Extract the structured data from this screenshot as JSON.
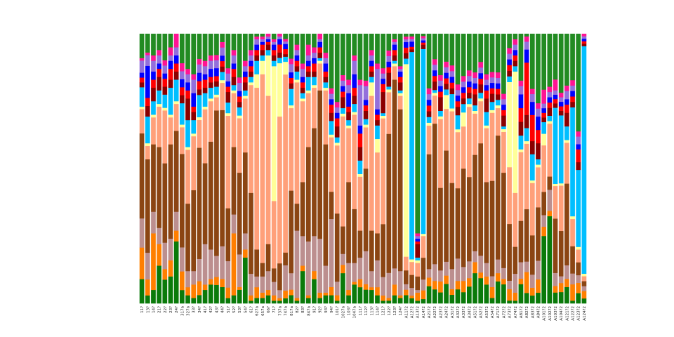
{
  "chart_data": {
    "type": "bar",
    "stacked": true,
    "normalized": true,
    "title": "",
    "xlabel": "",
    "ylabel": "",
    "ylim": [
      0,
      1
    ],
    "grid": false,
    "legend": "none",
    "categories": [
      "11?",
      "13?",
      "14?",
      "21?",
      "22?",
      "23?",
      "24?",
      "317a",
      "327a",
      "33?",
      "34?",
      "41?",
      "42?",
      "43?",
      "44?",
      "51?",
      "52?",
      "53?",
      "54?",
      "61?",
      "627a",
      "657a",
      "66?",
      "71?",
      "737a",
      "747a",
      "817a",
      "82?",
      "83?",
      "847a",
      "91?",
      "92?",
      "93?",
      "94?",
      "101?",
      "1027a",
      "103?",
      "1047a",
      "111?",
      "112?",
      "113?",
      "114?",
      "121?",
      "122?",
      "123?",
      "124?",
      "A11?2",
      "A12?2",
      "A13?2",
      "A14?2",
      "A21?2",
      "A22?2",
      "A23?2",
      "A24?2",
      "A31?2",
      "A32?2",
      "A33?2",
      "A34?2",
      "A51?2",
      "A52?2",
      "A53?2",
      "A54?2",
      "A71?2",
      "A72?2",
      "A73?2",
      "A74?2",
      "A81?2",
      "A82?2",
      "A83?2",
      "A84?2",
      "A101?2",
      "A102?2",
      "A103?2",
      "A104?2",
      "A121?2",
      "A122?2",
      "A123?2",
      "A124?2"
    ],
    "palette": [
      "#0a7a0a",
      "#ff7f00",
      "#bc8f8f",
      "#8b4513",
      "#ffa07a",
      "#ffff99",
      "#00bfff",
      "#8b0000",
      "#ff0000",
      "#0000ff",
      "#9370db",
      "#ff1493",
      "#228b22",
      "#daa520",
      "#4682b4",
      "#a0522d",
      "#f0e68c",
      "#87ceeb",
      "#ffd700",
      "#00ff7f"
    ],
    "series": [
      {
        "values": [
          0.1,
          0.03,
          0.05,
          0.14,
          0.09,
          0.1,
          0.23,
          0.05,
          0.03,
          0.02,
          0.03,
          0.05,
          0.07,
          0.07,
          0.06,
          0.02,
          0.03,
          0.05,
          0.17,
          0.01,
          0.02,
          0.02,
          0.03,
          0.01,
          0.01,
          0.02,
          0.03,
          0.01,
          0.12,
          0.02,
          0.09,
          0.02,
          0.03,
          0.03,
          0.01,
          0.11,
          0.03,
          0.07,
          0.06,
          0.05,
          0.05,
          0.03,
          0.01,
          0.01,
          0.03,
          0.02,
          0.03,
          0.02,
          0.01,
          0.02,
          0.06,
          0.05,
          0.04,
          0.07,
          0.03,
          0.05,
          0.04,
          0.06,
          0.11,
          0.09,
          0.07,
          0.02,
          0.08,
          0.07,
          0.01,
          0.01,
          0.07,
          0.04,
          0.03,
          0.04,
          0.29,
          0.33,
          0.05,
          0.05,
          0.06,
          0.01,
          0.04,
          0.02
        ]
      },
      {
        "values": [
          0.13,
          0.06,
          0.21,
          0.08,
          0.04,
          0.06,
          0.04,
          0.07,
          0.03,
          0.05,
          0.05,
          0.02,
          0.02,
          0.03,
          0.03,
          0.04,
          0.23,
          0.01,
          0.03,
          0.02,
          0.04,
          0.02,
          0.02,
          0.02,
          0.01,
          0.03,
          0.02,
          0.01,
          0.02,
          0.01,
          0.03,
          0.02,
          0.01,
          0.03,
          0.02,
          0.03,
          0.02,
          0.01,
          0.03,
          0.02,
          0.01,
          0.03,
          0.02,
          0.01,
          0.04,
          0.01,
          0.02,
          0.01,
          0.03,
          0.04,
          0.03,
          0.03,
          0.04,
          0.03,
          0.02,
          0.03,
          0.04,
          0.03,
          0.04,
          0.02,
          0.03,
          0.04,
          0.03,
          0.02,
          0.04,
          0.03,
          0.02,
          0.08,
          0.03,
          0.05,
          0.04,
          0.02,
          0.03,
          0.04,
          0.03,
          0.06,
          0.04,
          0.03
        ]
      },
      {
        "values": [
          0.12,
          0.1,
          0.08,
          0.06,
          0.1,
          0.08,
          0.07,
          0.09,
          0.06,
          0.05,
          0.08,
          0.15,
          0.11,
          0.08,
          0.12,
          0.1,
          0.07,
          0.12,
          0.06,
          0.08,
          0.04,
          0.06,
          0.07,
          0.05,
          0.03,
          0.1,
          0.06,
          0.25,
          0.11,
          0.2,
          0.13,
          0.2,
          0.1,
          0.25,
          0.05,
          0.04,
          0.1,
          0.07,
          0.08,
          0.12,
          0.06,
          0.1,
          0.07,
          0.09,
          0.06,
          0.09,
          0.02,
          0.03,
          0.01,
          0.05,
          0.03,
          0.06,
          0.04,
          0.05,
          0.07,
          0.08,
          0.05,
          0.06,
          0.04,
          0.06,
          0.05,
          0.04,
          0.05,
          0.04,
          0.03,
          0.07,
          0.06,
          0.04,
          0.05,
          0.07,
          0.05,
          0.08,
          0.06,
          0.03,
          0.05,
          0.04,
          0.03,
          0.02
        ]
      },
      {
        "values": [
          0.35,
          0.35,
          0.25,
          0.3,
          0.3,
          0.35,
          0.3,
          0.35,
          0.25,
          0.3,
          0.4,
          0.3,
          0.4,
          0.55,
          0.5,
          0.2,
          0.25,
          0.3,
          0.3,
          0.3,
          0.1,
          0.05,
          0.1,
          0.05,
          0.1,
          0.05,
          0.3,
          0.1,
          0.2,
          0.35,
          0.4,
          0.55,
          0.45,
          0.1,
          0.25,
          0.1,
          0.3,
          0.2,
          0.1,
          0.3,
          0.15,
          0.1,
          0.2,
          0.5,
          0.7,
          0.6,
          0.05,
          0.05,
          0.05,
          0.1,
          0.4,
          0.5,
          0.3,
          0.4,
          0.3,
          0.25,
          0.35,
          0.3,
          0.35,
          0.4,
          0.3,
          0.35,
          0.45,
          0.35,
          0.2,
          0.1,
          0.15,
          0.2,
          0.15,
          0.2,
          0.1,
          0.05,
          0.25,
          0.2,
          0.3,
          0.1,
          0.05,
          0.02
        ]
      },
      {
        "values": [
          0.1,
          0.05,
          0.1,
          0.15,
          0.2,
          0.1,
          0.1,
          0.1,
          0.2,
          0.2,
          0.1,
          0.2,
          0.15,
          0.05,
          0.1,
          0.35,
          0.2,
          0.2,
          0.2,
          0.4,
          0.6,
          0.7,
          0.55,
          0.25,
          0.55,
          0.7,
          0.3,
          0.45,
          0.3,
          0.2,
          0.15,
          0.1,
          0.2,
          0.2,
          0.25,
          0.4,
          0.2,
          0.35,
          0.2,
          0.15,
          0.5,
          0.3,
          0.4,
          0.15,
          0.05,
          0.05,
          0.05,
          0.05,
          0.05,
          0.1,
          0.1,
          0.1,
          0.25,
          0.15,
          0.25,
          0.2,
          0.15,
          0.25,
          0.15,
          0.15,
          0.2,
          0.25,
          0.1,
          0.15,
          0.2,
          0.2,
          0.25,
          0.25,
          0.2,
          0.15,
          0.2,
          0.2,
          0.15,
          0.2,
          0.15,
          0.1,
          0.05,
          0.02
        ]
      },
      {
        "values": [
          0.01,
          0.01,
          0.01,
          0.01,
          0.01,
          0.01,
          0.01,
          0.01,
          0.01,
          0.01,
          0.01,
          0.01,
          0.01,
          0.01,
          0.01,
          0.01,
          0.01,
          0.01,
          0.01,
          0.01,
          0.05,
          0.05,
          0.15,
          0.5,
          0.2,
          0.05,
          0.01,
          0.01,
          0.01,
          0.01,
          0.01,
          0.01,
          0.01,
          0.01,
          0.01,
          0.01,
          0.01,
          0.01,
          0.01,
          0.01,
          0.05,
          0.05,
          0.01,
          0.01,
          0.01,
          0.01,
          0.7,
          0.01,
          0.01,
          0.01,
          0.01,
          0.01,
          0.01,
          0.05,
          0.01,
          0.01,
          0.05,
          0.01,
          0.01,
          0.01,
          0.01,
          0.01,
          0.01,
          0.01,
          0.3,
          0.45,
          0.01,
          0.01,
          0.01,
          0.01,
          0.05,
          0.01,
          0.01,
          0.01,
          0.01,
          0.01,
          0.01,
          0.01
        ]
      },
      {
        "values": [
          0.08,
          0.1,
          0.05,
          0.05,
          0.05,
          0.1,
          0.08,
          0.08,
          0.1,
          0.05,
          0.08,
          0.05,
          0.04,
          0.03,
          0.03,
          0.04,
          0.02,
          0.03,
          0.02,
          0.02,
          0.05,
          0.02,
          0.02,
          0.02,
          0.02,
          0.02,
          0.06,
          0.03,
          0.02,
          0.05,
          0.03,
          0.01,
          0.02,
          0.05,
          0.02,
          0.02,
          0.02,
          0.03,
          0.05,
          0.02,
          0.02,
          0.05,
          0.01,
          0.01,
          0.01,
          0.01,
          0.02,
          0.8,
          0.01,
          0.85,
          0.02,
          0.01,
          0.02,
          0.02,
          0.05,
          0.05,
          0.03,
          0.02,
          0.02,
          0.02,
          0.05,
          0.03,
          0.02,
          0.01,
          0.02,
          0.02,
          0.05,
          0.05,
          0.1,
          0.02,
          0.05,
          0.02,
          0.35,
          0.3,
          0.05,
          0.4,
          0.3,
          0.92
        ]
      },
      {
        "values": [
          0.02,
          0.04,
          0.05,
          0.05,
          0.03,
          0.03,
          0.03,
          0.03,
          0.08,
          0.03,
          0.02,
          0.02,
          0.02,
          0.02,
          0.02,
          0.04,
          0.03,
          0.02,
          0.03,
          0.02,
          0.02,
          0.02,
          0.02,
          0.02,
          0.02,
          0.01,
          0.02,
          0.02,
          0.02,
          0.02,
          0.02,
          0.02,
          0.02,
          0.03,
          0.04,
          0.04,
          0.03,
          0.03,
          0.05,
          0.03,
          0.02,
          0.02,
          0.08,
          0.05,
          0.02,
          0.03,
          0.02,
          0.01,
          0.05,
          0.02,
          0.02,
          0.03,
          0.05,
          0.02,
          0.02,
          0.03,
          0.02,
          0.02,
          0.04,
          0.03,
          0.05,
          0.03,
          0.02,
          0.04,
          0.02,
          0.02,
          0.05,
          0.05,
          0.05,
          0.06,
          0.02,
          0.03,
          0.02,
          0.02,
          0.05,
          0.02,
          0.03,
          0.01
        ]
      },
      {
        "values": [
          0.02,
          0.03,
          0.03,
          0.03,
          0.03,
          0.04,
          0.03,
          0.03,
          0.03,
          0.02,
          0.03,
          0.03,
          0.02,
          0.02,
          0.02,
          0.02,
          0.03,
          0.02,
          0.02,
          0.02,
          0.02,
          0.02,
          0.01,
          0.02,
          0.03,
          0.02,
          0.02,
          0.02,
          0.02,
          0.02,
          0.03,
          0.02,
          0.02,
          0.03,
          0.03,
          0.02,
          0.02,
          0.03,
          0.05,
          0.02,
          0.02,
          0.02,
          0.03,
          0.02,
          0.02,
          0.02,
          0.02,
          0.01,
          0.01,
          0.01,
          0.02,
          0.02,
          0.02,
          0.02,
          0.02,
          0.02,
          0.02,
          0.02,
          0.02,
          0.02,
          0.03,
          0.02,
          0.02,
          0.02,
          0.02,
          0.02,
          0.05,
          0.2,
          0.1,
          0.05,
          0.02,
          0.02,
          0.02,
          0.02,
          0.03,
          0.02,
          0.05,
          0.01
        ]
      },
      {
        "values": [
          0.02,
          0.12,
          0.03,
          0.02,
          0.02,
          0.03,
          0.03,
          0.03,
          0.03,
          0.05,
          0.03,
          0.02,
          0.03,
          0.03,
          0.02,
          0.02,
          0.02,
          0.02,
          0.02,
          0.02,
          0.02,
          0.01,
          0.01,
          0.02,
          0.02,
          0.02,
          0.02,
          0.02,
          0.02,
          0.02,
          0.02,
          0.02,
          0.03,
          0.02,
          0.02,
          0.02,
          0.05,
          0.05,
          0.03,
          0.02,
          0.02,
          0.02,
          0.02,
          0.02,
          0.02,
          0.02,
          0.02,
          0.02,
          0.01,
          0.01,
          0.02,
          0.02,
          0.02,
          0.02,
          0.02,
          0.02,
          0.02,
          0.02,
          0.02,
          0.02,
          0.02,
          0.02,
          0.02,
          0.02,
          0.02,
          0.02,
          0.05,
          0.05,
          0.05,
          0.05,
          0.02,
          0.02,
          0.02,
          0.02,
          0.02,
          0.02,
          0.02,
          0.01
        ]
      },
      {
        "values": [
          0.05,
          0.04,
          0.04,
          0.03,
          0.03,
          0.02,
          0.03,
          0.03,
          0.03,
          0.05,
          0.03,
          0.03,
          0.03,
          0.03,
          0.03,
          0.03,
          0.03,
          0.03,
          0.02,
          0.02,
          0.02,
          0.01,
          0.01,
          0.01,
          0.01,
          0.01,
          0.03,
          0.02,
          0.03,
          0.02,
          0.02,
          0.01,
          0.02,
          0.02,
          0.02,
          0.02,
          0.03,
          0.05,
          0.15,
          0.05,
          0.02,
          0.15,
          0.02,
          0.02,
          0.01,
          0.01,
          0.01,
          0.01,
          0.01,
          0.01,
          0.02,
          0.02,
          0.02,
          0.02,
          0.02,
          0.02,
          0.02,
          0.02,
          0.02,
          0.02,
          0.02,
          0.02,
          0.02,
          0.02,
          0.02,
          0.02,
          0.03,
          0.03,
          0.03,
          0.03,
          0.02,
          0.02,
          0.02,
          0.02,
          0.03,
          0.02,
          0.03,
          0.01
        ]
      },
      {
        "values": [
          0.01,
          0.01,
          0.02,
          0.02,
          0.02,
          0.03,
          0.05,
          0.03,
          0.02,
          0.02,
          0.02,
          0.02,
          0.02,
          0.02,
          0.02,
          0.02,
          0.02,
          0.02,
          0.02,
          0.02,
          0.01,
          0.01,
          0.01,
          0.01,
          0.01,
          0.01,
          0.02,
          0.02,
          0.02,
          0.04,
          0.02,
          0.02,
          0.02,
          0.02,
          0.02,
          0.02,
          0.02,
          0.02,
          0.02,
          0.02,
          0.02,
          0.02,
          0.02,
          0.02,
          0.01,
          0.01,
          0.01,
          0.01,
          0.01,
          0.01,
          0.02,
          0.02,
          0.02,
          0.02,
          0.02,
          0.02,
          0.02,
          0.02,
          0.02,
          0.02,
          0.02,
          0.02,
          0.02,
          0.02,
          0.02,
          0.02,
          0.02,
          0.02,
          0.02,
          0.02,
          0.06,
          0.02,
          0.05,
          0.02,
          0.02,
          0.02,
          0.02,
          0.01
        ]
      },
      {
        "values": [
          0.1,
          0.07,
          0.08,
          0.06,
          0.1,
          0.05,
          0.0,
          0.11,
          0.13,
          0.15,
          0.09,
          0.1,
          0.08,
          0.08,
          0.03,
          0.13,
          0.06,
          0.16,
          0.1,
          0.06,
          0.01,
          0.01,
          0.0,
          0.02,
          0.0,
          0.02,
          0.09,
          0.04,
          0.11,
          0.04,
          0.05,
          0.0,
          0.07,
          0.2,
          0.25,
          0.15,
          0.17,
          0.08,
          0.17,
          0.17,
          0.06,
          0.11,
          0.13,
          0.06,
          0.02,
          0.12,
          0.01,
          0.01,
          0.74,
          0.01,
          0.19,
          0.09,
          0.15,
          0.1,
          0.11,
          0.18,
          0.15,
          0.13,
          0.14,
          0.1,
          0.15,
          0.14,
          0.14,
          0.22,
          0.05,
          0.02,
          0.17,
          0.01,
          0.21,
          0.26,
          0.24,
          0.2,
          0.21,
          0.26,
          0.19,
          0.17,
          0.38,
          0.0
        ]
      }
    ]
  }
}
